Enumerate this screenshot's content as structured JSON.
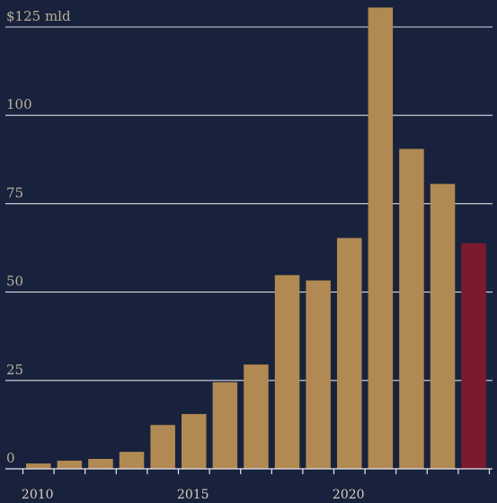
{
  "chart_data": {
    "type": "bar",
    "x": [
      2010,
      2011,
      2012,
      2013,
      2014,
      2015,
      2016,
      2017,
      2018,
      2019,
      2020,
      2021,
      2022,
      2023,
      2024
    ],
    "values": [
      1.5,
      2.3,
      2.8,
      4.8,
      12.4,
      15.5,
      24.5,
      29.5,
      54.8,
      53.3,
      65.3,
      130.5,
      90.5,
      80.6,
      63.8
    ],
    "highlight_index": 14,
    "colors": {
      "background": "#19223c",
      "bar": "#b18952",
      "highlight": "#7b1a2e",
      "grid": "#d9dbe2",
      "text": "#b8b09c"
    },
    "ylim": [
      0,
      125
    ],
    "yticks": [
      {
        "value": 0,
        "label": "0"
      },
      {
        "value": 25,
        "label": "25"
      },
      {
        "value": 50,
        "label": "50"
      },
      {
        "value": 75,
        "label": "75"
      },
      {
        "value": 100,
        "label": "100"
      },
      {
        "value": 125,
        "label": "$125 mld"
      }
    ],
    "xtick_labels": [
      {
        "year": 2010,
        "label": "2010"
      },
      {
        "year": 2015,
        "label": "2015"
      },
      {
        "year": 2020,
        "label": "2020"
      }
    ],
    "grid": true,
    "title": "",
    "xlabel": "",
    "ylabel": ""
  }
}
